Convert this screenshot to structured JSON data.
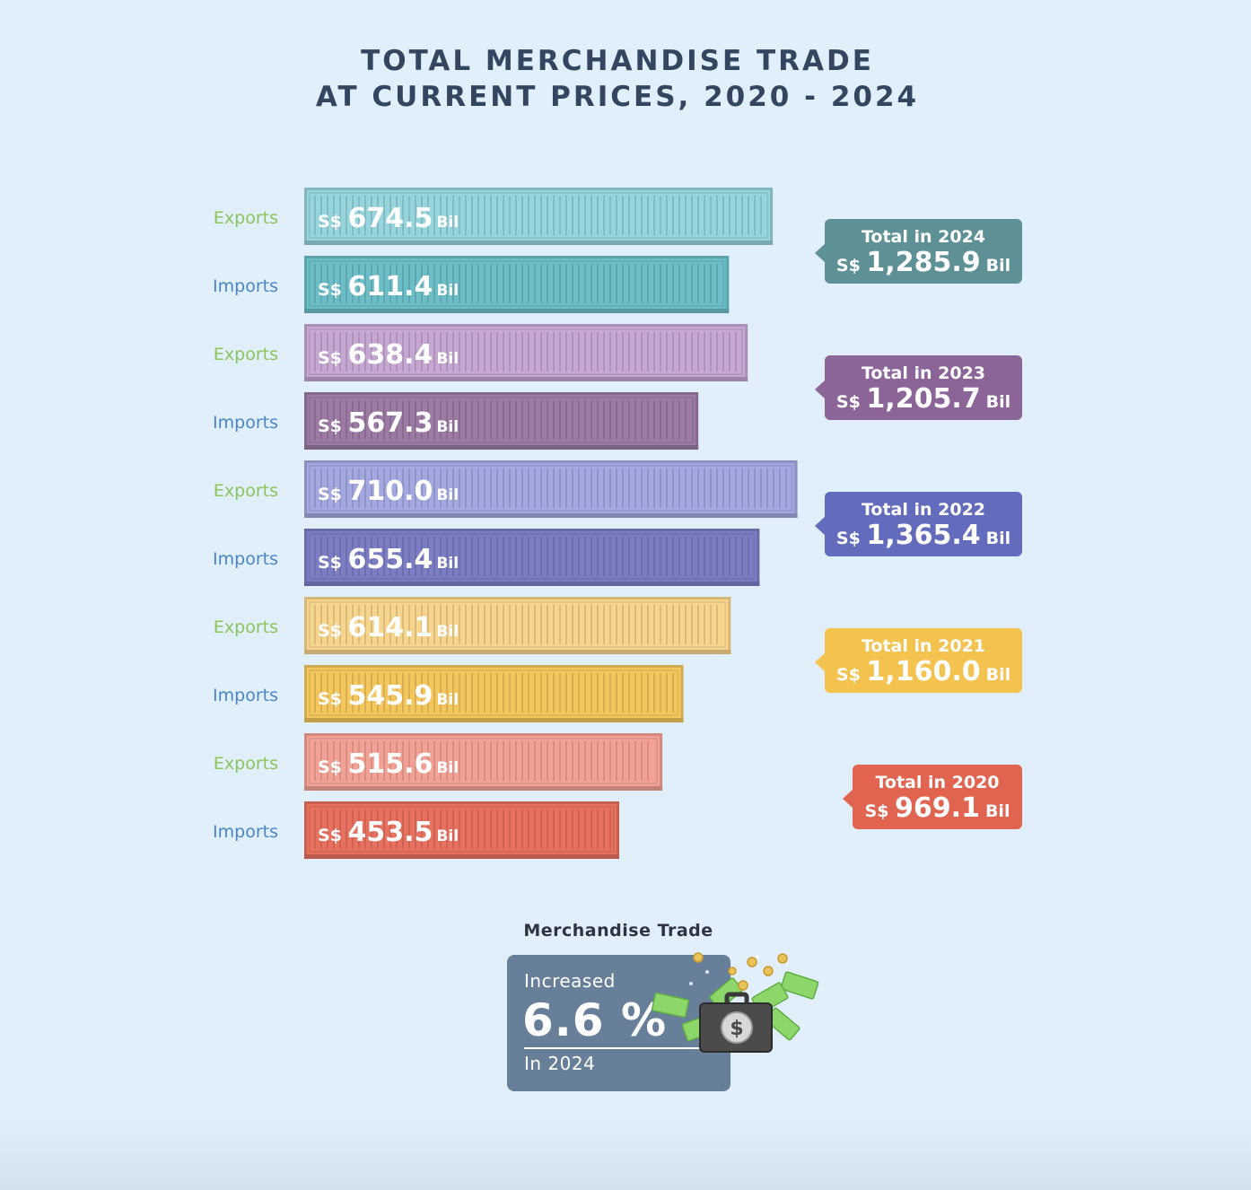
{
  "title_line1": "TOTAL MERCHANDISE TRADE",
  "title_line2": "AT CURRENT PRICES, 2020 - 2024",
  "chart_data": {
    "type": "bar",
    "orientation": "horizontal",
    "currency_prefix": "S$",
    "unit_suffix": "Bil",
    "bars": [
      {
        "year": "2024",
        "label": "Exports",
        "value": 674.5,
        "display": "674.5",
        "color": "#96d5dc",
        "label_color": "#8cc45c"
      },
      {
        "year": "2024",
        "label": "Imports",
        "value": 611.4,
        "display": "611.4",
        "color": "#6bbec7",
        "label_color": "#4a86c2"
      },
      {
        "year": "2023",
        "label": "Exports",
        "value": 638.4,
        "display": "638.4",
        "color": "#c5a7d2",
        "label_color": "#8cc45c"
      },
      {
        "year": "2023",
        "label": "Imports",
        "value": 567.3,
        "display": "567.3",
        "color": "#9b7aa3",
        "label_color": "#4a86c2"
      },
      {
        "year": "2022",
        "label": "Exports",
        "value": 710.0,
        "display": "710.0",
        "color": "#a3a8e0",
        "label_color": "#8cc45c"
      },
      {
        "year": "2022",
        "label": "Imports",
        "value": 655.4,
        "display": "655.4",
        "color": "#7b7ec4",
        "label_color": "#4a86c2"
      },
      {
        "year": "2021",
        "label": "Exports",
        "value": 614.1,
        "display": "614.1",
        "color": "#f8d58d",
        "label_color": "#8cc45c"
      },
      {
        "year": "2021",
        "label": "Imports",
        "value": 545.9,
        "display": "545.9",
        "color": "#f4c75d",
        "label_color": "#4a86c2"
      },
      {
        "year": "2020",
        "label": "Exports",
        "value": 515.6,
        "display": "515.6",
        "color": "#f4a195",
        "label_color": "#8cc45c"
      },
      {
        "year": "2020",
        "label": "Imports",
        "value": 453.5,
        "display": "453.5",
        "color": "#e8705f",
        "label_color": "#4a86c2"
      }
    ],
    "totals": [
      {
        "year": "2024",
        "title": "Total in 2024",
        "value": "1,285.9",
        "color": "#5d9196"
      },
      {
        "year": "2023",
        "title": "Total in 2023",
        "value": "1,205.7",
        "color": "#8b6598"
      },
      {
        "year": "2022",
        "title": "Total in 2022",
        "value": "1,365.4",
        "color": "#636bbd"
      },
      {
        "year": "2021",
        "title": "Total in 2021",
        "value": "1,160.0",
        "color": "#f4c34f"
      },
      {
        "year": "2020",
        "title": "Total in 2020",
        "value": "969.1",
        "color": "#e0644f"
      }
    ]
  },
  "kpi": {
    "heading": "Merchandise Trade",
    "label": "Increased",
    "value": "6.6 %",
    "sub": "In 2024"
  }
}
